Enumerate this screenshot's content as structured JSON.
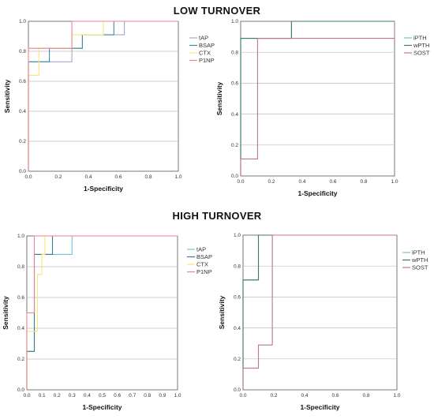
{
  "sections": [
    {
      "title": "LOW TURNOVER"
    },
    {
      "title": "HIGH TURNOVER"
    }
  ],
  "chart_data": [
    {
      "type": "line",
      "panel": "top-left",
      "xlabel": "1-Specificity",
      "ylabel": "Sensitivity",
      "xlim": [
        0,
        1
      ],
      "ylim": [
        0,
        1
      ],
      "xticks": [
        "0.0",
        "0.2",
        "0.4",
        "0.6",
        "0.8",
        "1.0"
      ],
      "yticks": [
        "0.0",
        "0.2",
        "0.4",
        "0.6",
        "0.8",
        "1.0"
      ],
      "grid": "horizontal",
      "legend": "right",
      "series": [
        {
          "name": "tAP",
          "color": "#a9a2d6",
          "x": [
            0,
            0,
            0.29,
            0.29,
            0.36,
            0.36,
            0.57,
            0.57,
            0.64,
            0.64,
            1
          ],
          "y": [
            0,
            0.73,
            0.73,
            0.82,
            0.82,
            0.91,
            0.91,
            0.91,
            0.91,
            1,
            1
          ]
        },
        {
          "name": "BSAP",
          "color": "#3a8fa0",
          "x": [
            0,
            0,
            0.14,
            0.14,
            0.36,
            0.36,
            0.57,
            0.57,
            1
          ],
          "y": [
            0,
            0.73,
            0.73,
            0.82,
            0.82,
            0.91,
            0.91,
            1,
            1
          ]
        },
        {
          "name": "CTX",
          "color": "#f3e77a",
          "x": [
            0,
            0,
            0.07,
            0.07,
            0.29,
            0.29,
            0.5,
            0.5,
            1
          ],
          "y": [
            0,
            0.64,
            0.64,
            0.82,
            0.82,
            0.91,
            0.91,
            1,
            1
          ]
        },
        {
          "name": "P1NP",
          "color": "#e8858d",
          "x": [
            0,
            0,
            0.29,
            0.29,
            1
          ],
          "y": [
            0,
            0.82,
            0.82,
            1,
            1
          ]
        }
      ]
    },
    {
      "type": "line",
      "panel": "top-right",
      "xlabel": "1-Specificity",
      "ylabel": "Sensitivity",
      "xlim": [
        0,
        1
      ],
      "ylim": [
        0,
        1
      ],
      "xticks": [
        "0.0",
        "0.2",
        "0.4",
        "0.6",
        "0.8",
        "1.0"
      ],
      "yticks": [
        "0.0",
        "0.2",
        "0.4",
        "0.6",
        "0.8",
        "1.0"
      ],
      "grid": "horizontal",
      "legend": "right",
      "series": [
        {
          "name": "iPTH",
          "color": "#6ec4dd",
          "x": [
            0,
            0,
            0.33,
            0.33,
            1
          ],
          "y": [
            0,
            0.89,
            0.89,
            1,
            1
          ]
        },
        {
          "name": "wPTH",
          "color": "#3a7d5c",
          "x": [
            0,
            0,
            0.33,
            0.33,
            1
          ],
          "y": [
            0,
            0.89,
            0.89,
            1,
            1
          ]
        },
        {
          "name": "SOST",
          "color": "#c4738a",
          "x": [
            0,
            0,
            0.11,
            0.11,
            1,
            1
          ],
          "y": [
            0,
            0.11,
            0.11,
            0.89,
            0.89,
            1
          ]
        }
      ]
    },
    {
      "type": "line",
      "panel": "bottom-left",
      "xlabel": "1-Specificity",
      "ylabel": "Sensitivity",
      "xlim": [
        0,
        1
      ],
      "ylim": [
        0,
        1
      ],
      "xticks": [
        "0.0",
        "0.1",
        "0.2",
        "0.3",
        "0.4",
        "0.5",
        "0.6",
        "0.7",
        "0.8",
        "0.9",
        "1.0"
      ],
      "yticks": [
        "0.0",
        "0.2",
        "0.4",
        "0.6",
        "0.8",
        "1.0"
      ],
      "grid": "horizontal",
      "legend": "right",
      "series": [
        {
          "name": "tAP",
          "color": "#6ec4dd",
          "x": [
            0,
            0,
            0.05,
            0.05,
            0.17,
            0.17,
            0.3,
            0.3,
            1
          ],
          "y": [
            0,
            0.25,
            0.25,
            0.88,
            0.88,
            0.88,
            0.88,
            1,
            1
          ]
        },
        {
          "name": "BSAP",
          "color": "#3a7d8a",
          "x": [
            0,
            0,
            0.05,
            0.05,
            0.17,
            0.17,
            1
          ],
          "y": [
            0,
            0.25,
            0.25,
            0.88,
            0.88,
            1,
            1
          ]
        },
        {
          "name": "CTX",
          "color": "#f3e77a",
          "x": [
            0,
            0,
            0.07,
            0.07,
            0.1,
            0.1,
            0.12,
            0.12,
            1
          ],
          "y": [
            0,
            0.38,
            0.38,
            0.75,
            0.75,
            0.88,
            0.88,
            1,
            1
          ]
        },
        {
          "name": "P1NP",
          "color": "#e8858d",
          "x": [
            0,
            0,
            0.05,
            0.05,
            1
          ],
          "y": [
            0,
            0.5,
            0.5,
            1,
            1
          ]
        }
      ]
    },
    {
      "type": "line",
      "panel": "bottom-right",
      "xlabel": "1-Specificity",
      "ylabel": "Sensitivity",
      "xlim": [
        0,
        1
      ],
      "ylim": [
        0,
        1
      ],
      "xticks": [
        "0.0",
        "0.2",
        "0.4",
        "0.6",
        "0.8",
        "1.0"
      ],
      "yticks": [
        "0.0",
        "0.2",
        "0.4",
        "0.6",
        "0.8",
        "1.0"
      ],
      "grid": "horizontal",
      "legend": "right",
      "series": [
        {
          "name": "iPTH",
          "color": "#6ec4dd",
          "x": [
            0,
            0,
            0.1,
            0.1,
            1
          ],
          "y": [
            0,
            0.71,
            0.71,
            1,
            1
          ]
        },
        {
          "name": "wPTH",
          "color": "#3a7d5c",
          "x": [
            0,
            0,
            0.1,
            0.1,
            1
          ],
          "y": [
            0,
            0.71,
            0.71,
            1,
            1
          ]
        },
        {
          "name": "SOST",
          "color": "#c4738a",
          "x": [
            0,
            0,
            0.1,
            0.1,
            0.19,
            0.19,
            1
          ],
          "y": [
            0,
            0.14,
            0.14,
            0.29,
            0.29,
            1,
            1
          ]
        }
      ]
    }
  ]
}
